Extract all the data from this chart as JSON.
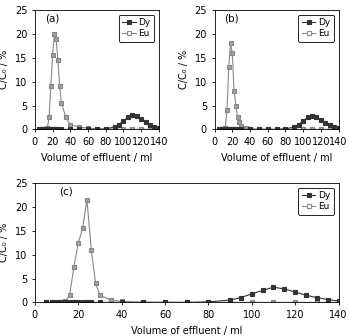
{
  "subplot_a": {
    "label": "(a)",
    "eu_x": [
      5,
      8,
      10,
      12,
      14,
      16,
      18,
      20,
      22,
      24,
      26,
      28,
      30,
      35,
      40,
      50,
      60,
      70,
      80,
      90,
      100,
      110,
      120,
      130,
      140
    ],
    "eu_y": [
      0,
      0,
      0,
      0,
      0.2,
      2.5,
      9.0,
      15.5,
      20.0,
      19.0,
      14.5,
      9.0,
      5.5,
      2.5,
      1.0,
      0.5,
      0.3,
      0.1,
      0.05,
      0.02,
      0.01,
      0.01,
      0.01,
      0.01,
      0.01
    ],
    "dy_x": [
      5,
      8,
      10,
      12,
      14,
      16,
      18,
      20,
      22,
      24,
      26,
      30,
      40,
      50,
      60,
      70,
      80,
      90,
      95,
      100,
      105,
      110,
      115,
      120,
      125,
      130,
      135,
      140
    ],
    "dy_y": [
      0,
      0,
      0,
      0,
      0,
      0,
      0,
      0,
      0,
      0,
      0,
      0,
      0,
      0,
      0,
      0,
      0.1,
      0.5,
      1.0,
      1.8,
      2.5,
      3.0,
      2.8,
      2.2,
      1.5,
      1.0,
      0.6,
      0.3
    ]
  },
  "subplot_b": {
    "label": "(b)",
    "eu_x": [
      5,
      8,
      10,
      12,
      14,
      16,
      18,
      20,
      22,
      24,
      26,
      28,
      30,
      35,
      40,
      50,
      60,
      70,
      80,
      90,
      100,
      110,
      120,
      130,
      140
    ],
    "eu_y": [
      0,
      0,
      0,
      0.3,
      4.0,
      13.0,
      18.0,
      16.0,
      8.0,
      5.0,
      2.5,
      1.5,
      0.8,
      0.3,
      0.1,
      0.05,
      0.02,
      0.01,
      0.01,
      0.01,
      0.01,
      0.01,
      0.01,
      0.01,
      0.01
    ],
    "dy_x": [
      5,
      8,
      10,
      12,
      14,
      16,
      18,
      20,
      22,
      24,
      26,
      30,
      40,
      50,
      60,
      70,
      80,
      90,
      95,
      100,
      105,
      110,
      115,
      120,
      125,
      130,
      135,
      140
    ],
    "dy_y": [
      0,
      0,
      0,
      0,
      0,
      0,
      0,
      0,
      0,
      0,
      0,
      0,
      0,
      0,
      0,
      0,
      0.1,
      0.5,
      1.0,
      1.8,
      2.5,
      2.8,
      2.5,
      2.0,
      1.4,
      0.9,
      0.5,
      0.3
    ]
  },
  "subplot_c": {
    "label": "(c)",
    "eu_x": [
      5,
      8,
      10,
      12,
      14,
      16,
      18,
      20,
      22,
      24,
      26,
      28,
      30,
      35,
      40,
      50,
      60,
      70,
      80,
      90,
      100,
      110,
      120,
      130,
      140
    ],
    "eu_y": [
      0,
      0,
      0,
      0,
      0.2,
      1.5,
      7.5,
      12.5,
      15.5,
      21.5,
      11.0,
      4.0,
      1.5,
      0.5,
      0.2,
      0.05,
      0.02,
      0.01,
      0.01,
      0.01,
      0.01,
      0.01,
      0.01,
      0.01,
      0.01
    ],
    "dy_x": [
      5,
      8,
      10,
      12,
      14,
      16,
      18,
      20,
      22,
      24,
      26,
      30,
      40,
      50,
      60,
      70,
      80,
      90,
      95,
      100,
      105,
      110,
      115,
      120,
      125,
      130,
      135,
      140
    ],
    "dy_y": [
      0,
      0,
      0,
      0,
      0,
      0,
      0,
      0,
      0,
      0,
      0,
      0,
      0,
      0,
      0,
      0,
      0.1,
      0.5,
      1.0,
      1.8,
      2.5,
      3.2,
      2.8,
      2.2,
      1.5,
      1.0,
      0.6,
      0.3
    ]
  },
  "xlim": [
    0,
    140
  ],
  "ylim": [
    0,
    25
  ],
  "yticks": [
    0,
    5,
    10,
    15,
    20,
    25
  ],
  "xticks": [
    0,
    20,
    40,
    60,
    80,
    100,
    120,
    140
  ],
  "xlabel": "Volume of effluent / ml",
  "ylabel": "C/C₀ / %",
  "dy_color": "#333333",
  "eu_color": "#888888",
  "dy_marker": "s",
  "eu_marker": "s",
  "line_color": "#555555",
  "fontsize": 7,
  "legend_fontsize": 6.5
}
